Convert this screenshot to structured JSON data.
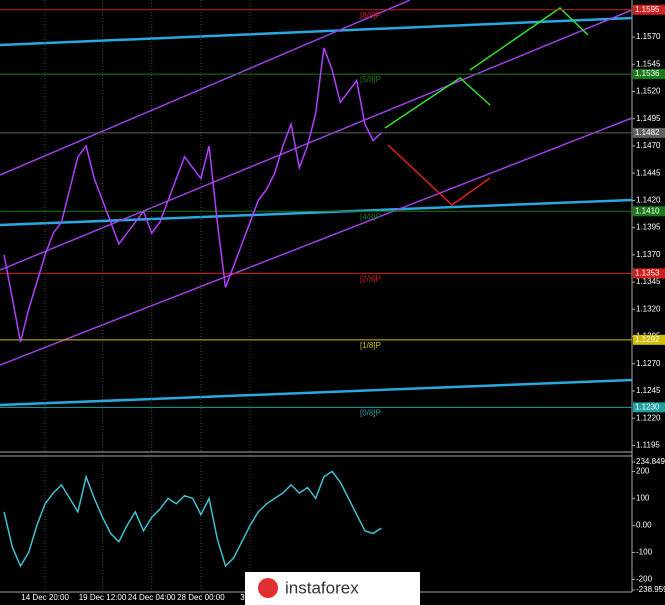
{
  "chart_data": [
    {
      "type": "line",
      "categories": [
        null,
        null,
        null,
        null,
        null,
        "14 Dec 20:00",
        null,
        null,
        null,
        null,
        null,
        null,
        "19 Dec 12:00",
        null,
        null,
        null,
        null,
        null,
        "24 Dec 04:00",
        null,
        null,
        null,
        null,
        null,
        "28 Dec 00:00",
        null,
        null,
        null,
        null,
        null,
        "3 Jan",
        null,
        null,
        null,
        null,
        null,
        null,
        null,
        null,
        null,
        null,
        null,
        null,
        null,
        null,
        null,
        null
      ],
      "series": [
        {
          "color": "#b040ff",
          "values": [
            1.137,
            1.133,
            1.129,
            1.132,
            1.1345,
            1.137,
            1.139,
            1.14,
            1.143,
            1.146,
            1.147,
            1.144,
            1.142,
            1.14,
            1.138,
            1.139,
            1.14,
            1.141,
            1.139,
            1.14,
            1.142,
            1.144,
            1.146,
            1.145,
            1.144,
            1.147,
            1.14,
            1.134,
            1.136,
            1.138,
            1.14,
            1.142,
            1.143,
            1.1445,
            1.147,
            1.149,
            1.145,
            1.147,
            1.15,
            1.156,
            1.154,
            1.151,
            1.152,
            1.153,
            1.149,
            1.1475,
            1.1482
          ]
        }
      ],
      "ylim": [
        1.1189,
        1.1604
      ],
      "yticks": [
        {
          "value": 1.157,
          "label": "1.1570"
        },
        {
          "value": 1.1545,
          "label": "1.1545"
        },
        {
          "value": 1.152,
          "label": "1.1520"
        },
        {
          "value": 1.1495,
          "label": "1.1495"
        },
        {
          "value": 1.147,
          "label": "1.1470"
        },
        {
          "value": 1.1445,
          "label": "1.1445"
        },
        {
          "value": 1.142,
          "label": "1.1420"
        },
        {
          "value": 1.1395,
          "label": "1.1395"
        },
        {
          "value": 1.137,
          "label": "1.1370"
        },
        {
          "value": 1.1345,
          "label": "1.1345"
        },
        {
          "value": 1.132,
          "label": "1.1320"
        },
        {
          "value": 1.1295,
          "label": "1.1295"
        },
        {
          "value": 1.127,
          "label": "1.1270"
        },
        {
          "value": 1.1245,
          "label": "1.1245"
        },
        {
          "value": 1.122,
          "label": "1.1220"
        },
        {
          "value": 1.1195,
          "label": "1.1195"
        }
      ],
      "levels": [
        {
          "label": "[8/8]P",
          "value": 1.1595,
          "value_label": "1.1595",
          "color": "#d02020"
        },
        {
          "label": "[5/8]P",
          "value": 1.1536,
          "value_label": "1.1536",
          "color": "#1a7a1a"
        },
        {
          "label": "[4/8]P",
          "value": 1.141,
          "value_label": "1.1410",
          "color": "#1a7a1a"
        },
        {
          "label": "[2/8]P",
          "value": 1.1353,
          "value_label": "1.1353",
          "color": "#d02020"
        },
        {
          "label": "[1/8]P",
          "value": 1.1292,
          "value_label": "1.1292",
          "color": "#d0c000"
        },
        {
          "label": "[0/8]P",
          "value": 1.123,
          "value_label": "1.1230",
          "color": "#20a0a0"
        }
      ],
      "price": {
        "value": 1.1482,
        "value_label": "1.1482",
        "color": "#606060"
      },
      "grid": true
    },
    {
      "type": "line",
      "series": [
        {
          "color": "#40c0d0",
          "values": [
            50,
            -80,
            -150,
            -100,
            0,
            80,
            120,
            150,
            100,
            50,
            180,
            100,
            30,
            -30,
            -60,
            0,
            50,
            -20,
            30,
            60,
            100,
            80,
            110,
            100,
            40,
            100,
            -50,
            -150,
            -120,
            -60,
            0,
            50,
            80,
            100,
            120,
            150,
            120,
            140,
            100,
            180,
            200,
            160,
            100,
            40,
            -20,
            -30,
            -10
          ]
        }
      ],
      "ylim": [
        -238.9591,
        234.8491
      ],
      "yticks": [
        {
          "value": 234.8491,
          "label": "234.8491"
        },
        200,
        100,
        {
          "value": 0,
          "label": "0.00"
        },
        -100,
        -200,
        {
          "value": -238.9591,
          "label": "-238.9591"
        }
      ]
    }
  ],
  "watermark": "instaforex"
}
